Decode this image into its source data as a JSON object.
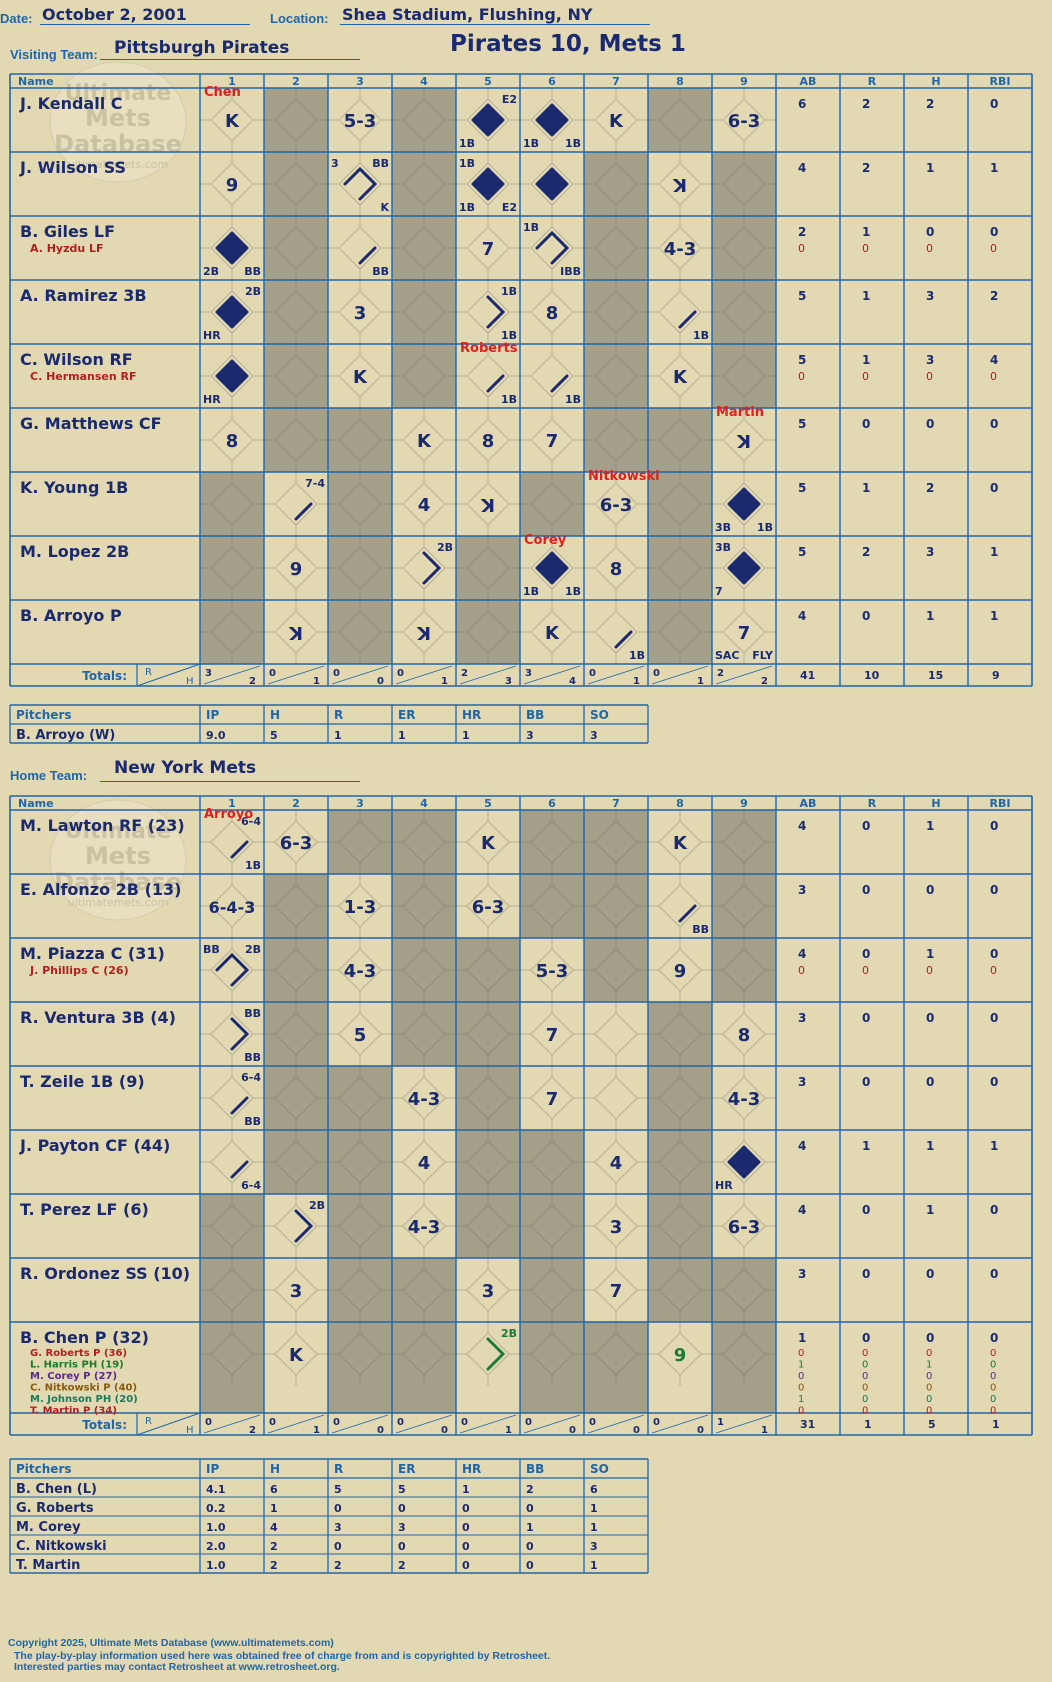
{
  "game": {
    "date_label": "Date:",
    "date": "October 2, 2001",
    "location_label": "Location:",
    "location": "Shea Stadium, Flushing, NY",
    "visiting_label": "Visiting Team:",
    "visiting_team": "Pittsburgh Pirates",
    "home_label": "Home Team:",
    "home_team": "New York Mets",
    "title": "Pirates 10, Mets 1"
  },
  "watermark": {
    "line1": "Ultimate",
    "line2": "Mets",
    "line3": "Database",
    "line4": "ultimatemets.com"
  },
  "headers": {
    "name": "Name",
    "innings": [
      "1",
      "2",
      "3",
      "4",
      "5",
      "6",
      "7",
      "8",
      "9"
    ],
    "stats": [
      "AB",
      "R",
      "H",
      "RBI"
    ],
    "totals": "Totals:",
    "rh_r": "R",
    "rh_h": "H"
  },
  "visiting": {
    "shaded": [
      [
        0,
        1,
        0,
        1,
        0,
        0,
        0,
        1,
        0
      ],
      [
        0,
        1,
        0,
        1,
        0,
        0,
        1,
        0,
        1
      ],
      [
        0,
        1,
        0,
        1,
        0,
        0,
        1,
        0,
        1
      ],
      [
        0,
        1,
        0,
        1,
        0,
        0,
        1,
        0,
        1
      ],
      [
        0,
        1,
        0,
        1,
        0,
        0,
        1,
        0,
        1
      ],
      [
        0,
        1,
        1,
        0,
        0,
        0,
        1,
        1,
        0
      ],
      [
        1,
        0,
        1,
        0,
        0,
        1,
        0,
        1,
        0
      ],
      [
        1,
        0,
        1,
        0,
        1,
        0,
        0,
        1,
        0
      ],
      [
        1,
        0,
        1,
        0,
        1,
        0,
        0,
        1,
        0
      ]
    ],
    "batters": [
      {
        "name": "J. Kendall C",
        "stats": [
          "6",
          "2",
          "2",
          "0"
        ]
      },
      {
        "name": "J. Wilson SS",
        "stats": [
          "4",
          "2",
          "1",
          "1"
        ]
      },
      {
        "name": "B. Giles LF",
        "sub": "A. Hyzdu LF",
        "stats": [
          "2",
          "1",
          "0",
          "0"
        ],
        "sub_stats": [
          "0",
          "0",
          "0",
          "0"
        ]
      },
      {
        "name": "A. Ramirez 3B",
        "stats": [
          "5",
          "1",
          "3",
          "2"
        ]
      },
      {
        "name": "C. Wilson RF",
        "sub": "C. Hermansen RF",
        "stats": [
          "5",
          "1",
          "3",
          "4"
        ],
        "sub_stats": [
          "0",
          "0",
          "0",
          "0"
        ]
      },
      {
        "name": "G. Matthews CF",
        "stats": [
          "5",
          "0",
          "0",
          "0"
        ]
      },
      {
        "name": "K. Young 1B",
        "stats": [
          "5",
          "1",
          "2",
          "0"
        ]
      },
      {
        "name": "M. Lopez 2B",
        "stats": [
          "5",
          "2",
          "3",
          "1"
        ]
      },
      {
        "name": "B. Arroyo P",
        "stats": [
          "4",
          "0",
          "1",
          "1"
        ]
      }
    ],
    "plays": [
      {
        "r": 0,
        "c": 0,
        "t": "K"
      },
      {
        "r": 0,
        "c": 0,
        "red": "Chen"
      },
      {
        "r": 0,
        "c": 2,
        "t": "5-3"
      },
      {
        "r": 0,
        "c": 4,
        "run": 1,
        "tr": "E2",
        "bl": "1B"
      },
      {
        "r": 0,
        "c": 5,
        "run": 1,
        "bl": "1B",
        "br": "1B"
      },
      {
        "r": 0,
        "c": 6,
        "t": "K"
      },
      {
        "r": 0,
        "c": 8,
        "t": "6-3"
      },
      {
        "r": 1,
        "c": 0,
        "t": "9"
      },
      {
        "r": 1,
        "c": 2,
        "path": 3,
        "tl": "3",
        "tr": "BB",
        "br": "K"
      },
      {
        "r": 1,
        "c": 4,
        "run": 1,
        "tl": "1B",
        "bl": "1B",
        "br": "E2"
      },
      {
        "r": 1,
        "c": 5,
        "run": 1
      },
      {
        "r": 1,
        "c": 7,
        "t": "K",
        "rev": 1
      },
      {
        "r": 2,
        "c": 0,
        "run": 1,
        "bl": "2B",
        "br": "BB"
      },
      {
        "r": 2,
        "c": 2,
        "path": 1,
        "br": "BB"
      },
      {
        "r": 2,
        "c": 4,
        "t": "7"
      },
      {
        "r": 2,
        "c": 5,
        "path": 3,
        "tl": "1B",
        "br": "IBB"
      },
      {
        "r": 2,
        "c": 7,
        "t": "4-3"
      },
      {
        "r": 3,
        "c": 0,
        "run": 1,
        "tr": "2B",
        "bl": "HR"
      },
      {
        "r": 3,
        "c": 2,
        "t": "3"
      },
      {
        "r": 3,
        "c": 4,
        "path": 2,
        "tr": "1B",
        "br": "1B"
      },
      {
        "r": 3,
        "c": 5,
        "t": "8"
      },
      {
        "r": 3,
        "c": 7,
        "path": 1,
        "br": "1B"
      },
      {
        "r": 4,
        "c": 0,
        "run": 1,
        "bl": "HR"
      },
      {
        "r": 4,
        "c": 2,
        "t": "K"
      },
      {
        "r": 4,
        "c": 4,
        "path": 1,
        "br": "1B"
      },
      {
        "r": 4,
        "c": 4,
        "red": "Roberts"
      },
      {
        "r": 4,
        "c": 5,
        "path": 1,
        "br": "1B"
      },
      {
        "r": 4,
        "c": 7,
        "t": "K"
      },
      {
        "r": 5,
        "c": 0,
        "t": "8"
      },
      {
        "r": 5,
        "c": 3,
        "t": "K"
      },
      {
        "r": 5,
        "c": 4,
        "t": "8"
      },
      {
        "r": 5,
        "c": 5,
        "t": "7"
      },
      {
        "r": 5,
        "c": 8,
        "t": "K",
        "rev": 1
      },
      {
        "r": 5,
        "c": 8,
        "red": "Martin"
      },
      {
        "r": 6,
        "c": 1,
        "path": 1,
        "tr": "7-4"
      },
      {
        "r": 6,
        "c": 3,
        "t": "4"
      },
      {
        "r": 6,
        "c": 4,
        "t": "K",
        "rev": 1
      },
      {
        "r": 6,
        "c": 6,
        "t": "6-3"
      },
      {
        "r": 6,
        "c": 6,
        "red": "Nitkowski"
      },
      {
        "r": 6,
        "c": 8,
        "run": 1,
        "bl": "3B",
        "br": "1B"
      },
      {
        "r": 7,
        "c": 1,
        "t": "9"
      },
      {
        "r": 7,
        "c": 3,
        "path": 2,
        "tr": "2B"
      },
      {
        "r": 7,
        "c": 5,
        "run": 1,
        "bl": "1B",
        "br": "1B"
      },
      {
        "r": 7,
        "c": 5,
        "red": "Corey"
      },
      {
        "r": 7,
        "c": 6,
        "t": "8"
      },
      {
        "r": 7,
        "c": 8,
        "run": 1,
        "tl": "3B",
        "bl": "7"
      },
      {
        "r": 8,
        "c": 1,
        "t": "K",
        "rev": 1
      },
      {
        "r": 8,
        "c": 3,
        "t": "K",
        "rev": 1
      },
      {
        "r": 8,
        "c": 5,
        "t": "K"
      },
      {
        "r": 8,
        "c": 6,
        "path": 1,
        "br": "1B"
      },
      {
        "r": 8,
        "c": 8,
        "t": "7",
        "bl": "SAC",
        "br": "FLY"
      }
    ],
    "totals_rh": [
      [
        "3",
        "2"
      ],
      [
        "0",
        "1"
      ],
      [
        "0",
        "0"
      ],
      [
        "0",
        "1"
      ],
      [
        "2",
        "3"
      ],
      [
        "3",
        "4"
      ],
      [
        "0",
        "1"
      ],
      [
        "0",
        "1"
      ],
      [
        "2",
        "2"
      ]
    ],
    "totals_stats": [
      "41",
      "10",
      "15",
      "9"
    ]
  },
  "home": {
    "shaded": [
      [
        0,
        0,
        1,
        1,
        0,
        1,
        1,
        0,
        1
      ],
      [
        0,
        1,
        0,
        1,
        0,
        1,
        1,
        0,
        1
      ],
      [
        0,
        1,
        0,
        1,
        1,
        0,
        1,
        0,
        1
      ],
      [
        0,
        1,
        0,
        1,
        1,
        0,
        0,
        1,
        0
      ],
      [
        0,
        1,
        1,
        0,
        1,
        0,
        0,
        1,
        0
      ],
      [
        0,
        1,
        1,
        0,
        1,
        1,
        0,
        1,
        0
      ],
      [
        1,
        0,
        1,
        0,
        1,
        1,
        0,
        1,
        0
      ],
      [
        1,
        0,
        1,
        1,
        0,
        1,
        0,
        1,
        1
      ],
      [
        1,
        0,
        1,
        1,
        0,
        1,
        1,
        0,
        1
      ]
    ],
    "batters": [
      {
        "name": "M. Lawton RF (23)",
        "stats": [
          "4",
          "0",
          "1",
          "0"
        ]
      },
      {
        "name": "E. Alfonzo 2B (13)",
        "stats": [
          "3",
          "0",
          "0",
          "0"
        ]
      },
      {
        "name": "M. Piazza C (31)",
        "sub": "J. Phillips C (26)",
        "stats": [
          "4",
          "0",
          "1",
          "0"
        ],
        "sub_stats": [
          "0",
          "0",
          "0",
          "0"
        ]
      },
      {
        "name": "R. Ventura 3B (4)",
        "stats": [
          "3",
          "0",
          "0",
          "0"
        ]
      },
      {
        "name": "T. Zeile 1B (9)",
        "stats": [
          "3",
          "0",
          "0",
          "0"
        ]
      },
      {
        "name": "J. Payton CF (44)",
        "stats": [
          "4",
          "1",
          "1",
          "1"
        ]
      },
      {
        "name": "T. Perez LF (6)",
        "stats": [
          "4",
          "0",
          "1",
          "0"
        ]
      },
      {
        "name": "R. Ordonez SS (10)",
        "stats": [
          "3",
          "0",
          "0",
          "0"
        ]
      },
      {
        "name": "B. Chen P (32)",
        "stats": [
          "1",
          "0",
          "0",
          "0"
        ]
      }
    ],
    "chen_subs": [
      {
        "name": "G. Roberts P (36)",
        "stats": [
          "0",
          "0",
          "0",
          "0"
        ]
      },
      {
        "name": "L. Harris PH (19)",
        "stats": [
          "1",
          "0",
          "1",
          "0"
        ]
      },
      {
        "name": "M. Corey P (27)",
        "stats": [
          "0",
          "0",
          "0",
          "0"
        ]
      },
      {
        "name": "C. Nitkowski P (40)",
        "stats": [
          "0",
          "0",
          "0",
          "0"
        ]
      },
      {
        "name": "M. Johnson PH (20)",
        "stats": [
          "1",
          "0",
          "0",
          "0"
        ]
      },
      {
        "name": "T. Martin P (34)",
        "stats": [
          "0",
          "0",
          "0",
          "0"
        ]
      }
    ],
    "chen_sub_colors": [
      "#b02020",
      "#1a7a2a",
      "#5a2a8a",
      "#8a5a10",
      "#1a7a5a",
      "#b02020"
    ],
    "plays": [
      {
        "r": 0,
        "c": 0,
        "path": 1,
        "tr": "6-4",
        "br": "1B"
      },
      {
        "r": 0,
        "c": 0,
        "red": "Arroyo"
      },
      {
        "r": 0,
        "c": 1,
        "t": "6-3"
      },
      {
        "r": 0,
        "c": 4,
        "t": "K"
      },
      {
        "r": 0,
        "c": 7,
        "t": "K"
      },
      {
        "r": 1,
        "c": 0,
        "t": "6-4-3"
      },
      {
        "r": 1,
        "c": 2,
        "t": "1-3"
      },
      {
        "r": 1,
        "c": 4,
        "t": "6-3"
      },
      {
        "r": 1,
        "c": 7,
        "path": 1,
        "br": "BB"
      },
      {
        "r": 2,
        "c": 0,
        "path": 3,
        "tl": "BB",
        "tr": "2B"
      },
      {
        "r": 2,
        "c": 2,
        "t": "4-3"
      },
      {
        "r": 2,
        "c": 5,
        "t": "5-3"
      },
      {
        "r": 2,
        "c": 7,
        "t": "9"
      },
      {
        "r": 3,
        "c": 0,
        "path": 2,
        "tr": "BB",
        "br": "BB"
      },
      {
        "r": 3,
        "c": 2,
        "t": "5"
      },
      {
        "r": 3,
        "c": 5,
        "t": "7"
      },
      {
        "r": 3,
        "c": 8,
        "t": "8"
      },
      {
        "r": 4,
        "c": 0,
        "path": 1,
        "tr": "6-4",
        "br": "BB"
      },
      {
        "r": 4,
        "c": 3,
        "t": "4-3"
      },
      {
        "r": 4,
        "c": 5,
        "t": "7"
      },
      {
        "r": 4,
        "c": 8,
        "t": "4-3"
      },
      {
        "r": 5,
        "c": 0,
        "path": 1,
        "br": "6-4"
      },
      {
        "r": 5,
        "c": 3,
        "t": "4"
      },
      {
        "r": 5,
        "c": 6,
        "t": "4"
      },
      {
        "r": 5,
        "c": 8,
        "run": 1,
        "bl": "HR"
      },
      {
        "r": 6,
        "c": 1,
        "path": 2,
        "tr": "2B"
      },
      {
        "r": 6,
        "c": 3,
        "t": "4-3"
      },
      {
        "r": 6,
        "c": 6,
        "t": "3"
      },
      {
        "r": 6,
        "c": 8,
        "t": "6-3"
      },
      {
        "r": 7,
        "c": 1,
        "t": "3"
      },
      {
        "r": 7,
        "c": 4,
        "t": "3"
      },
      {
        "r": 7,
        "c": 6,
        "t": "7"
      },
      {
        "r": 8,
        "c": 1,
        "t": "K"
      },
      {
        "r": 8,
        "c": 4,
        "path": 2,
        "tr": "2B",
        "green": 1
      },
      {
        "r": 8,
        "c": 7,
        "t": "9",
        "green": 1
      }
    ],
    "totals_rh": [
      [
        "0",
        "2"
      ],
      [
        "0",
        "1"
      ],
      [
        "0",
        "0"
      ],
      [
        "0",
        "0"
      ],
      [
        "0",
        "1"
      ],
      [
        "0",
        "0"
      ],
      [
        "0",
        "0"
      ],
      [
        "0",
        "0"
      ],
      [
        "1",
        "1"
      ]
    ],
    "totals_stats": [
      "31",
      "1",
      "5",
      "1"
    ]
  },
  "pitch_headers": [
    "Pitchers",
    "IP",
    "H",
    "R",
    "ER",
    "HR",
    "BB",
    "SO"
  ],
  "visiting_pitchers": [
    [
      "B. Arroyo (W)",
      "9.0",
      "5",
      "1",
      "1",
      "1",
      "3",
      "3"
    ]
  ],
  "home_pitchers": [
    [
      "B. Chen (L)",
      "4.1",
      "6",
      "5",
      "5",
      "1",
      "2",
      "6"
    ],
    [
      "G. Roberts",
      "0.2",
      "1",
      "0",
      "0",
      "0",
      "0",
      "1"
    ],
    [
      "M. Corey",
      "1.0",
      "4",
      "3",
      "3",
      "0",
      "1",
      "1"
    ],
    [
      "C. Nitkowski",
      "2.0",
      "2",
      "0",
      "0",
      "0",
      "0",
      "3"
    ],
    [
      "T. Martin",
      "1.0",
      "2",
      "2",
      "2",
      "0",
      "0",
      "1"
    ]
  ],
  "footer": {
    "line1": "Copyright 2025, Ultimate Mets Database (www.ultimatemets.com)",
    "line2": "The play-by-play information used here was obtained free of charge from and is copyrighted by Retrosheet.",
    "line3": "Interested parties may contact Retrosheet at www.retrosheet.org."
  },
  "colors": {
    "line": "#1f66a8",
    "ink": "#1b2a6e",
    "shade": "#a39f88",
    "paper": "#e2d9b3",
    "red": "#e02020",
    "green": "#1a7a3a",
    "sub_red": "#b02020"
  }
}
